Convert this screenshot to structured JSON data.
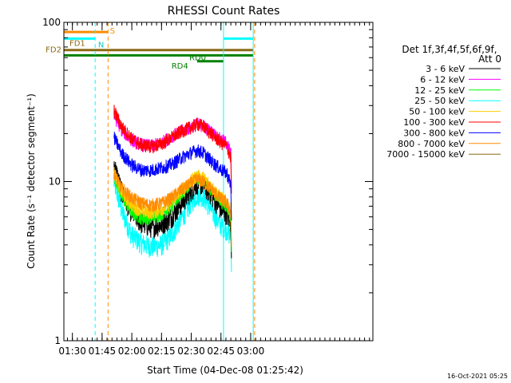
{
  "chart_data": {
    "type": "line",
    "title": "RHESSI Count Rates",
    "xlabel": "Start Time (04-Dec-08 01:25:42)",
    "ylabel": "Count Rate (s⁻¹ detector segment⁻¹)",
    "y_scale": "log",
    "ylim": [
      1,
      100
    ],
    "y_ticks": [
      "1",
      "10",
      "100"
    ],
    "x_range_min": [
      25.7,
      181.7
    ],
    "x_ticks": [
      {
        "label": "01:30",
        "min": 30
      },
      {
        "label": "01:45",
        "min": 45
      },
      {
        "label": "02:00",
        "min": 60
      },
      {
        "label": "02:15",
        "min": 75
      },
      {
        "label": "02:30",
        "min": 90
      },
      {
        "label": "02:45",
        "min": 105
      },
      {
        "label": "03:00",
        "min": 120
      }
    ],
    "x_time_labels": [
      "01:30",
      "01:45",
      "02:00",
      "02:15",
      "02:30",
      "02:45",
      "03:00"
    ],
    "legend_title": [
      "Det 1f,3f,4f,5f,6f,9f,",
      "Att 0"
    ],
    "legend_position": "right",
    "footer_date": "16-Oct-2021 05:25",
    "series": [
      {
        "name": "3 - 6 keV",
        "color": "#000000",
        "points": [
          [
            51,
            13
          ],
          [
            55,
            8.5
          ],
          [
            60,
            6.4
          ],
          [
            65,
            5.5
          ],
          [
            70,
            5.2
          ],
          [
            75,
            5.4
          ],
          [
            80,
            6.0
          ],
          [
            85,
            7.3
          ],
          [
            90,
            8.8
          ],
          [
            93,
            9.8
          ],
          [
            96,
            9.6
          ],
          [
            100,
            8.3
          ],
          [
            104,
            7.0
          ],
          [
            106,
            6.5
          ],
          [
            108,
            6.3
          ],
          [
            110,
            5.5
          ]
        ]
      },
      {
        "name": "6 - 12 keV",
        "color": "#ff00ff",
        "points": [
          [
            51,
            26
          ],
          [
            55,
            21
          ],
          [
            60,
            18.2
          ],
          [
            65,
            17.0
          ],
          [
            70,
            16.8
          ],
          [
            75,
            17.6
          ],
          [
            80,
            19.2
          ],
          [
            85,
            20.7
          ],
          [
            90,
            22
          ],
          [
            93,
            23
          ],
          [
            96,
            22.5
          ],
          [
            100,
            20.5
          ],
          [
            104,
            18.7
          ],
          [
            106,
            18
          ],
          [
            108,
            17.5
          ],
          [
            110,
            15
          ]
        ]
      },
      {
        "name": "12 - 25 keV",
        "color": "#00ff00",
        "points": [
          [
            51,
            11
          ],
          [
            55,
            8
          ],
          [
            60,
            6.4
          ],
          [
            65,
            5.9
          ],
          [
            70,
            5.9
          ],
          [
            75,
            6.3
          ],
          [
            80,
            7.0
          ],
          [
            85,
            8.4
          ],
          [
            90,
            9.9
          ],
          [
            93,
            10.6
          ],
          [
            96,
            10.2
          ],
          [
            100,
            9.0
          ],
          [
            104,
            7.8
          ],
          [
            106,
            7.3
          ],
          [
            108,
            7.0
          ],
          [
            110,
            6.0
          ]
        ]
      },
      {
        "name": "25 - 50 keV",
        "color": "#00ffff",
        "points": [
          [
            51,
            10
          ],
          [
            55,
            6.5
          ],
          [
            60,
            4.6
          ],
          [
            65,
            4.1
          ],
          [
            70,
            3.9
          ],
          [
            75,
            4.0
          ],
          [
            80,
            4.6
          ],
          [
            85,
            5.9
          ],
          [
            90,
            7.4
          ],
          [
            93,
            8.3
          ],
          [
            96,
            8.1
          ],
          [
            100,
            6.7
          ],
          [
            104,
            5.5
          ],
          [
            106,
            5.2
          ],
          [
            108,
            5.0
          ],
          [
            110,
            4.5
          ]
        ]
      },
      {
        "name": "50 - 100 keV",
        "color": "#ffcc00",
        "points": [
          [
            51,
            11.5
          ],
          [
            55,
            8.5
          ],
          [
            60,
            7.1
          ],
          [
            65,
            6.5
          ],
          [
            70,
            6.4
          ],
          [
            75,
            6.7
          ],
          [
            80,
            7.4
          ],
          [
            85,
            8.8
          ],
          [
            90,
            10.1
          ],
          [
            93,
            10.9
          ],
          [
            96,
            10.6
          ],
          [
            100,
            9.4
          ],
          [
            104,
            8.2
          ],
          [
            106,
            7.8
          ],
          [
            108,
            7.5
          ],
          [
            110,
            6.5
          ]
        ]
      },
      {
        "name": "100 - 300 keV",
        "color": "#ff0000",
        "points": [
          [
            51,
            28
          ],
          [
            55,
            22
          ],
          [
            60,
            18.6
          ],
          [
            65,
            17.0
          ],
          [
            70,
            16.6
          ],
          [
            75,
            17.3
          ],
          [
            80,
            18.8
          ],
          [
            85,
            20.7
          ],
          [
            90,
            22
          ],
          [
            93,
            23
          ],
          [
            96,
            22.3
          ],
          [
            100,
            20.1
          ],
          [
            104,
            18
          ],
          [
            106,
            17.2
          ],
          [
            108,
            16.6
          ],
          [
            110,
            14
          ]
        ]
      },
      {
        "name": "300 - 800 keV",
        "color": "#0000ff",
        "points": [
          [
            51,
            19
          ],
          [
            55,
            15
          ],
          [
            60,
            12.7
          ],
          [
            65,
            11.8
          ],
          [
            70,
            11.8
          ],
          [
            75,
            12.2
          ],
          [
            80,
            12.8
          ],
          [
            85,
            14.1
          ],
          [
            90,
            15.2
          ],
          [
            93,
            15.7
          ],
          [
            96,
            15.2
          ],
          [
            100,
            13.5
          ],
          [
            104,
            12.2
          ],
          [
            106,
            11.7
          ],
          [
            108,
            11.3
          ],
          [
            110,
            9.5
          ]
        ]
      },
      {
        "name": "800 - 7000 keV",
        "color": "#ff8c00",
        "points": [
          [
            51,
            11
          ],
          [
            55,
            9
          ],
          [
            60,
            7.9
          ],
          [
            65,
            7.3
          ],
          [
            70,
            7.1
          ],
          [
            75,
            7.3
          ],
          [
            80,
            7.9
          ],
          [
            85,
            8.9
          ],
          [
            90,
            9.8
          ],
          [
            93,
            10.3
          ],
          [
            96,
            10.0
          ],
          [
            100,
            9.0
          ],
          [
            104,
            8.0
          ],
          [
            106,
            7.6
          ],
          [
            108,
            7.3
          ],
          [
            110,
            6.5
          ]
        ]
      },
      {
        "name": "7000 - 15000 keV",
        "color": "#8b6914",
        "points": []
      }
    ],
    "annotations": [
      {
        "text": "S",
        "color": "#ff8c00"
      },
      {
        "text": "N",
        "color": "#00ffff"
      },
      {
        "text": "FD1",
        "color": "#8b6914"
      },
      {
        "text": "FD2",
        "color": "#8b6914"
      },
      {
        "text": "RD0",
        "color": "#008000"
      },
      {
        "text": "RD4",
        "color": "#008000"
      }
    ],
    "vertical_markers": [
      {
        "min": 25.7,
        "color": "#00ffff",
        "style": "solid"
      },
      {
        "min": 41.5,
        "color": "#00ffff",
        "style": "dashed"
      },
      {
        "min": 48.0,
        "color": "#ff8c00",
        "style": "dashed"
      },
      {
        "min": 106.3,
        "color": "#00ffff",
        "style": "solid"
      },
      {
        "min": 121.3,
        "color": "#00ffff",
        "style": "solid"
      },
      {
        "min": 122.0,
        "color": "#ff8c00",
        "style": "dashed"
      }
    ],
    "horizontal_segments": [
      {
        "from": 25.7,
        "to": 48.0,
        "value": 87,
        "color": "#ff8c00",
        "label": "S"
      },
      {
        "from": 25.7,
        "to": 41.5,
        "value": 79,
        "color": "#00ffff",
        "label": "N"
      },
      {
        "from": 106.3,
        "to": 121.3,
        "value": 79,
        "color": "#00ffff"
      },
      {
        "from": 25.7,
        "to": 121.3,
        "value": 67,
        "color": "#8b6914",
        "label": "FD2"
      },
      {
        "from": 25.7,
        "to": 121.3,
        "value": 62,
        "color": "#008000"
      },
      {
        "from": 93.0,
        "to": 106.3,
        "value": 57,
        "color": "#008000",
        "label": "RD4"
      }
    ]
  }
}
